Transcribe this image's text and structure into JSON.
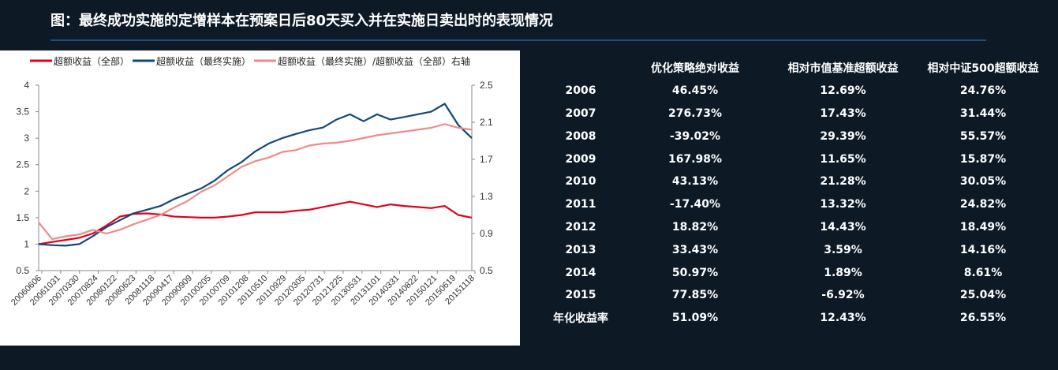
{
  "title": "图：最终成功实施的定增样本在预案日后80天买入并在实施日卖出时的表现情况",
  "colors": {
    "all": "#e3001b",
    "final": "#124875",
    "ratio": "#f08a8a",
    "background": "#0d1a26",
    "rule": "#1f4f7a"
  },
  "chart_data": {
    "type": "line",
    "title": "",
    "xlabel": "",
    "ylabel": "",
    "legend_position": "top",
    "grid": false,
    "x_ticks": [
      "20060606",
      "20061031",
      "20070330",
      "20070824",
      "20080122",
      "20080623",
      "20081118",
      "20090417",
      "20090909",
      "20100205",
      "20100709",
      "20101208",
      "20110510",
      "20110929",
      "20120305",
      "20120731",
      "20121225",
      "20130531",
      "20131101",
      "20140331",
      "20140822",
      "20150121",
      "20150619",
      "20151118"
    ],
    "ylim": [
      0.5,
      4
    ],
    "y_ticks": [
      "0.5",
      "1",
      "1.5",
      "2",
      "2.5",
      "3",
      "3.5",
      "4"
    ],
    "y2lim": [
      0.5,
      2.5
    ],
    "y2_ticks": [
      "0.5",
      "0.9",
      "1.3",
      "1.7",
      "2.1",
      "2.5"
    ],
    "series": [
      {
        "name": "超额收益（全部）",
        "axis": "left",
        "color": "#e3001b",
        "values": [
          1.0,
          1.04,
          1.08,
          1.12,
          1.2,
          1.35,
          1.52,
          1.57,
          1.58,
          1.56,
          1.52,
          1.51,
          1.5,
          1.5,
          1.52,
          1.55,
          1.6,
          1.6,
          1.6,
          1.63,
          1.65,
          1.7,
          1.75,
          1.8,
          1.75,
          1.7,
          1.75,
          1.72,
          1.7,
          1.68,
          1.72,
          1.55,
          1.5
        ]
      },
      {
        "name": "超额收益（最终实施）",
        "axis": "left",
        "color": "#124875",
        "values": [
          1.0,
          0.98,
          0.97,
          1.0,
          1.15,
          1.32,
          1.45,
          1.58,
          1.65,
          1.72,
          1.85,
          1.95,
          2.05,
          2.2,
          2.4,
          2.55,
          2.75,
          2.9,
          3.0,
          3.08,
          3.15,
          3.2,
          3.35,
          3.45,
          3.32,
          3.45,
          3.35,
          3.4,
          3.45,
          3.5,
          3.65,
          3.25,
          3.0
        ]
      },
      {
        "name": "超额收益（最终实施）/超额收益（全部）右轴",
        "axis": "right",
        "color": "#f08a8a",
        "values": [
          1.02,
          0.84,
          0.87,
          0.89,
          0.94,
          0.9,
          0.94,
          1.0,
          1.05,
          1.1,
          1.18,
          1.25,
          1.35,
          1.42,
          1.52,
          1.62,
          1.68,
          1.72,
          1.78,
          1.8,
          1.85,
          1.87,
          1.88,
          1.9,
          1.93,
          1.96,
          1.98,
          2.0,
          2.02,
          2.04,
          2.08,
          2.04,
          2.02
        ]
      }
    ]
  },
  "table": {
    "headers": [
      "",
      "优化策略绝对收益",
      "相对市值基准超额收益",
      "相对中证500超额收益"
    ],
    "rows": [
      [
        "2006",
        "46.45%",
        "12.69%",
        "24.76%"
      ],
      [
        "2007",
        "276.73%",
        "17.43%",
        "31.44%"
      ],
      [
        "2008",
        "-39.02%",
        "29.39%",
        "55.57%"
      ],
      [
        "2009",
        "167.98%",
        "11.65%",
        "15.87%"
      ],
      [
        "2010",
        "43.13%",
        "21.28%",
        "30.05%"
      ],
      [
        "2011",
        "-17.40%",
        "13.32%",
        "24.82%"
      ],
      [
        "2012",
        "18.82%",
        "14.43%",
        "18.49%"
      ],
      [
        "2013",
        "33.43%",
        "3.59%",
        "14.16%"
      ],
      [
        "2014",
        "50.97%",
        "1.89%",
        "8.61%"
      ],
      [
        "2015",
        "77.85%",
        "-6.92%",
        "25.04%"
      ],
      [
        "年化收益率",
        "51.09%",
        "12.43%",
        "26.55%"
      ]
    ]
  }
}
